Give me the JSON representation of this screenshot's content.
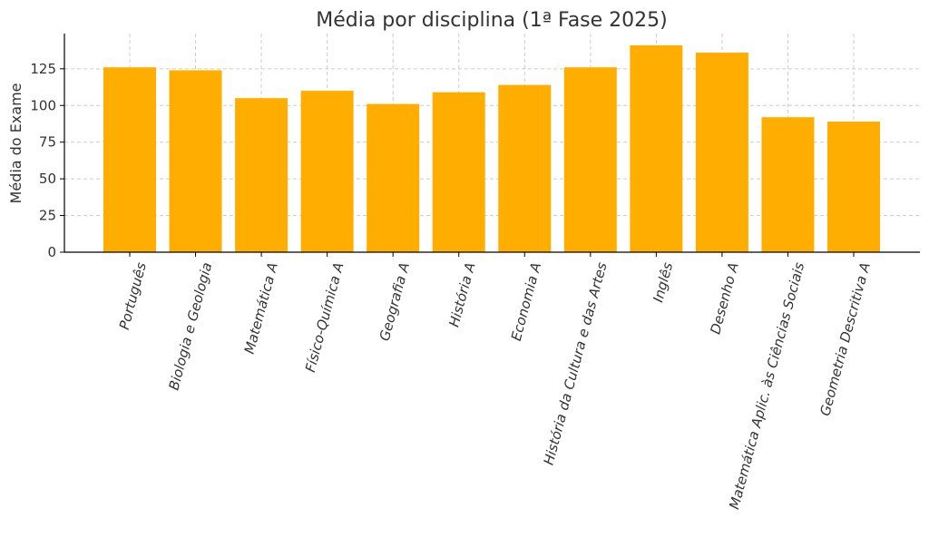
{
  "chart_data": {
    "type": "bar",
    "title": "Média por disciplina (1ª Fase 2025)",
    "xlabel": "",
    "ylabel": "Média do Exame",
    "categories": [
      "Português",
      "Biologia e Geologia",
      "Matemática A",
      "Físico-Química A",
      "Geografia A",
      "História A",
      "Economia A",
      "História da Cultura e das Artes",
      "Inglês",
      "Desenho A",
      "Matemática Aplic. às Ciências Sociais",
      "Geometria Descritiva A"
    ],
    "values": [
      126,
      124,
      105,
      110,
      101,
      109,
      114,
      126,
      141,
      136,
      92,
      89
    ],
    "ylim": [
      0,
      149
    ],
    "yticks": [
      0,
      25,
      50,
      75,
      100,
      125
    ],
    "grid": true,
    "legend": "none",
    "bar_color": "#FFAE00"
  }
}
